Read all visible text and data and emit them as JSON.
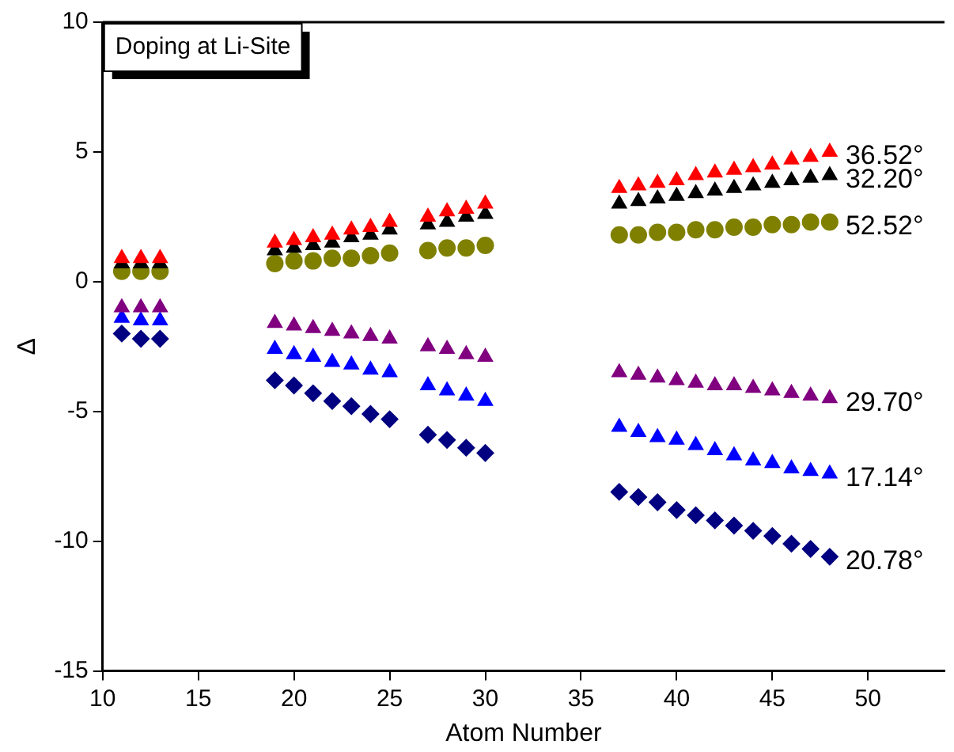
{
  "chart_data": {
    "type": "scatter",
    "title": "Doping at Li-Site",
    "xlabel": "Atom Number",
    "ylabel": "Δ",
    "x": [
      11,
      12,
      13,
      19,
      20,
      21,
      22,
      23,
      24,
      25,
      27,
      28,
      29,
      30,
      37,
      38,
      39,
      40,
      41,
      42,
      43,
      44,
      45,
      46,
      47,
      48
    ],
    "series": [
      {
        "name": "36.52°",
        "color": "#ff0000",
        "marker": "triangle",
        "values": [
          0.9,
          0.9,
          0.9,
          1.5,
          1.6,
          1.7,
          1.8,
          2.0,
          2.1,
          2.3,
          2.5,
          2.7,
          2.8,
          3.0,
          3.6,
          3.7,
          3.8,
          3.9,
          4.1,
          4.2,
          4.3,
          4.4,
          4.5,
          4.7,
          4.8,
          5.0
        ]
      },
      {
        "name": "32.20°",
        "color": "#000000",
        "marker": "triangle",
        "values": [
          0.7,
          0.7,
          0.7,
          1.2,
          1.3,
          1.4,
          1.5,
          1.7,
          1.8,
          2.0,
          2.2,
          2.3,
          2.5,
          2.6,
          3.0,
          3.1,
          3.2,
          3.3,
          3.4,
          3.5,
          3.6,
          3.7,
          3.8,
          3.9,
          4.0,
          4.1
        ]
      },
      {
        "name": "52.52°",
        "color": "#808000",
        "marker": "circle",
        "values": [
          0.4,
          0.4,
          0.4,
          0.7,
          0.8,
          0.8,
          0.9,
          0.9,
          1.0,
          1.1,
          1.2,
          1.3,
          1.3,
          1.4,
          1.8,
          1.8,
          1.9,
          1.9,
          2.0,
          2.0,
          2.1,
          2.1,
          2.2,
          2.2,
          2.3,
          2.3
        ]
      },
      {
        "name": "29.70°",
        "color": "#800080",
        "marker": "triangle",
        "values": [
          -1.0,
          -1.0,
          -1.0,
          -1.6,
          -1.7,
          -1.8,
          -1.9,
          -2.0,
          -2.1,
          -2.2,
          -2.5,
          -2.6,
          -2.8,
          -2.9,
          -3.5,
          -3.6,
          -3.7,
          -3.8,
          -3.9,
          -4.0,
          -4.0,
          -4.1,
          -4.2,
          -4.3,
          -4.4,
          -4.5
        ]
      },
      {
        "name": "17.14°",
        "color": "#0000ff",
        "marker": "triangle",
        "values": [
          -1.4,
          -1.5,
          -1.5,
          -2.6,
          -2.8,
          -2.9,
          -3.1,
          -3.2,
          -3.4,
          -3.5,
          -4.0,
          -4.2,
          -4.4,
          -4.6,
          -5.6,
          -5.8,
          -6.0,
          -6.1,
          -6.3,
          -6.5,
          -6.7,
          -6.9,
          -7.0,
          -7.2,
          -7.3,
          -7.4
        ]
      },
      {
        "name": "20.78°",
        "color": "#000080",
        "marker": "diamond",
        "values": [
          -2.0,
          -2.2,
          -2.2,
          -3.8,
          -4.0,
          -4.3,
          -4.6,
          -4.8,
          -5.1,
          -5.3,
          -5.9,
          -6.1,
          -6.4,
          -6.6,
          -8.1,
          -8.3,
          -8.5,
          -8.8,
          -9.0,
          -9.2,
          -9.4,
          -9.6,
          -9.8,
          -10.1,
          -10.3,
          -10.6
        ]
      }
    ],
    "xlim": [
      10,
      54
    ],
    "xticks": [
      10,
      15,
      20,
      25,
      30,
      35,
      40,
      45,
      50
    ],
    "ylim": [
      -15,
      10
    ],
    "yticks": [
      -15,
      -10,
      -5,
      0,
      5,
      10
    ],
    "grid": false,
    "legend": false
  }
}
